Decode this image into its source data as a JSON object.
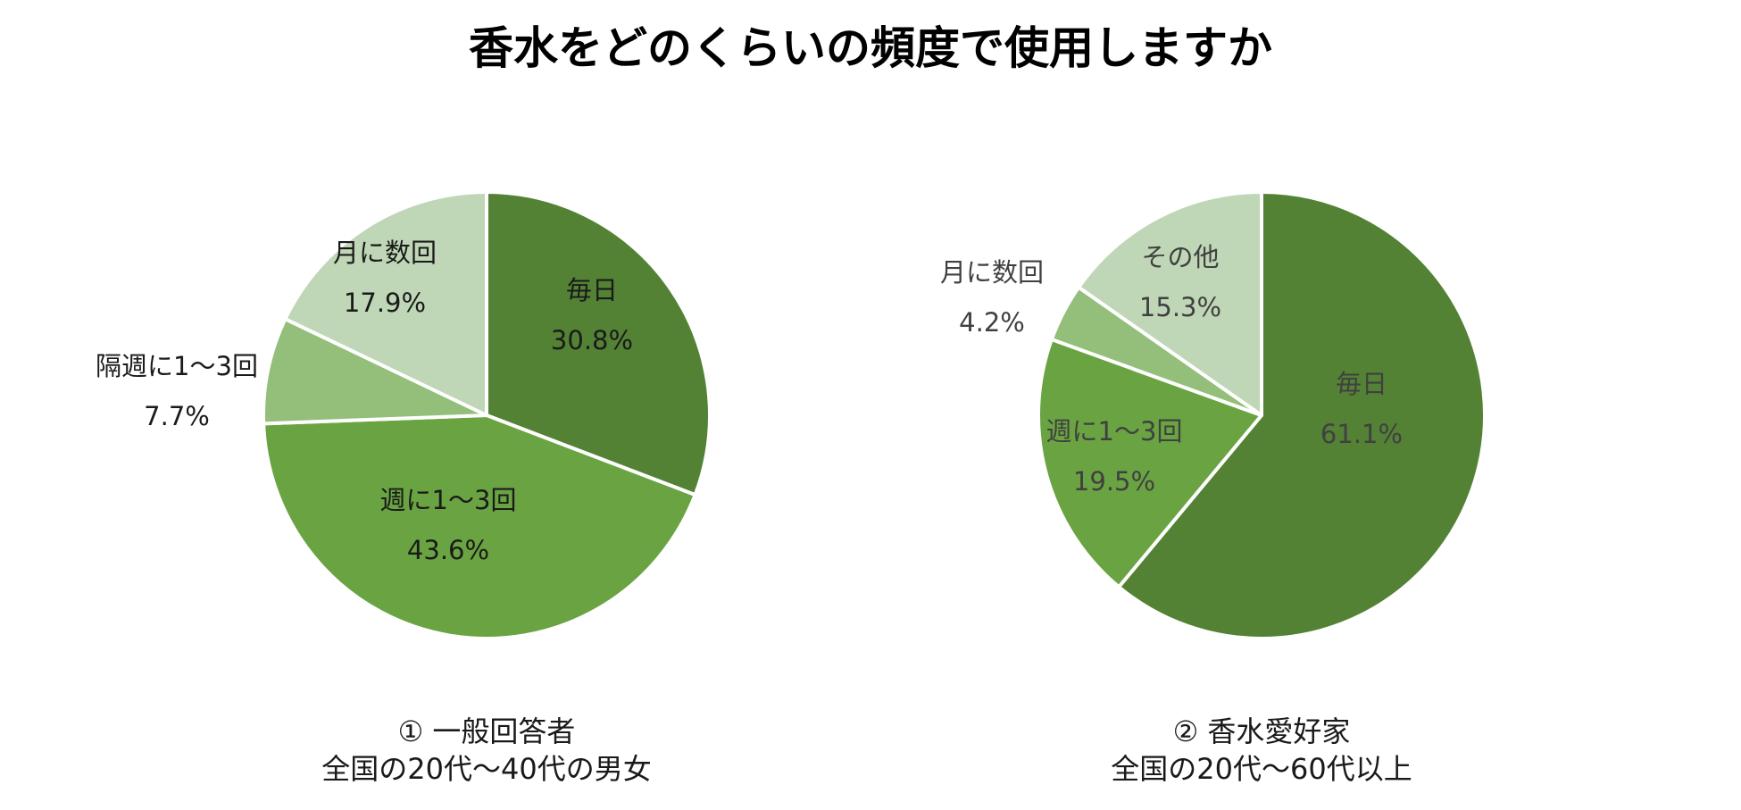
{
  "title": "香水をどのくらいの頻度で使用しますか",
  "chart_data": [
    {
      "type": "pie",
      "title": "① 一般回答者",
      "subtitle": "全国の20代～40代の男女",
      "slices": [
        {
          "label": "毎日",
          "value": 30.8,
          "value_label": "30.8%",
          "color": "#548235"
        },
        {
          "label": "週に1～3回",
          "value": 43.6,
          "value_label": "43.6%",
          "color": "#6aa442"
        },
        {
          "label": "隔週に1～3回",
          "value": 7.7,
          "value_label": "7.7%",
          "color": "#93bf7b"
        },
        {
          "label": "月に数回",
          "value": 17.9,
          "value_label": "17.9%",
          "color": "#bfd7b6"
        }
      ]
    },
    {
      "type": "pie",
      "title": "② 香水愛好家",
      "subtitle": "全国の20代～60代以上",
      "slices": [
        {
          "label": "毎日",
          "value": 61.1,
          "value_label": "61.1%",
          "color": "#548235"
        },
        {
          "label": "週に1～3回",
          "value": 19.5,
          "value_label": "19.5%",
          "color": "#6aa442"
        },
        {
          "label": "月に数回",
          "value": 4.2,
          "value_label": "4.2%",
          "color": "#93bf7b"
        },
        {
          "label": "その他",
          "value": 15.3,
          "value_label": "15.3%",
          "color": "#bfd7b6"
        }
      ]
    }
  ]
}
